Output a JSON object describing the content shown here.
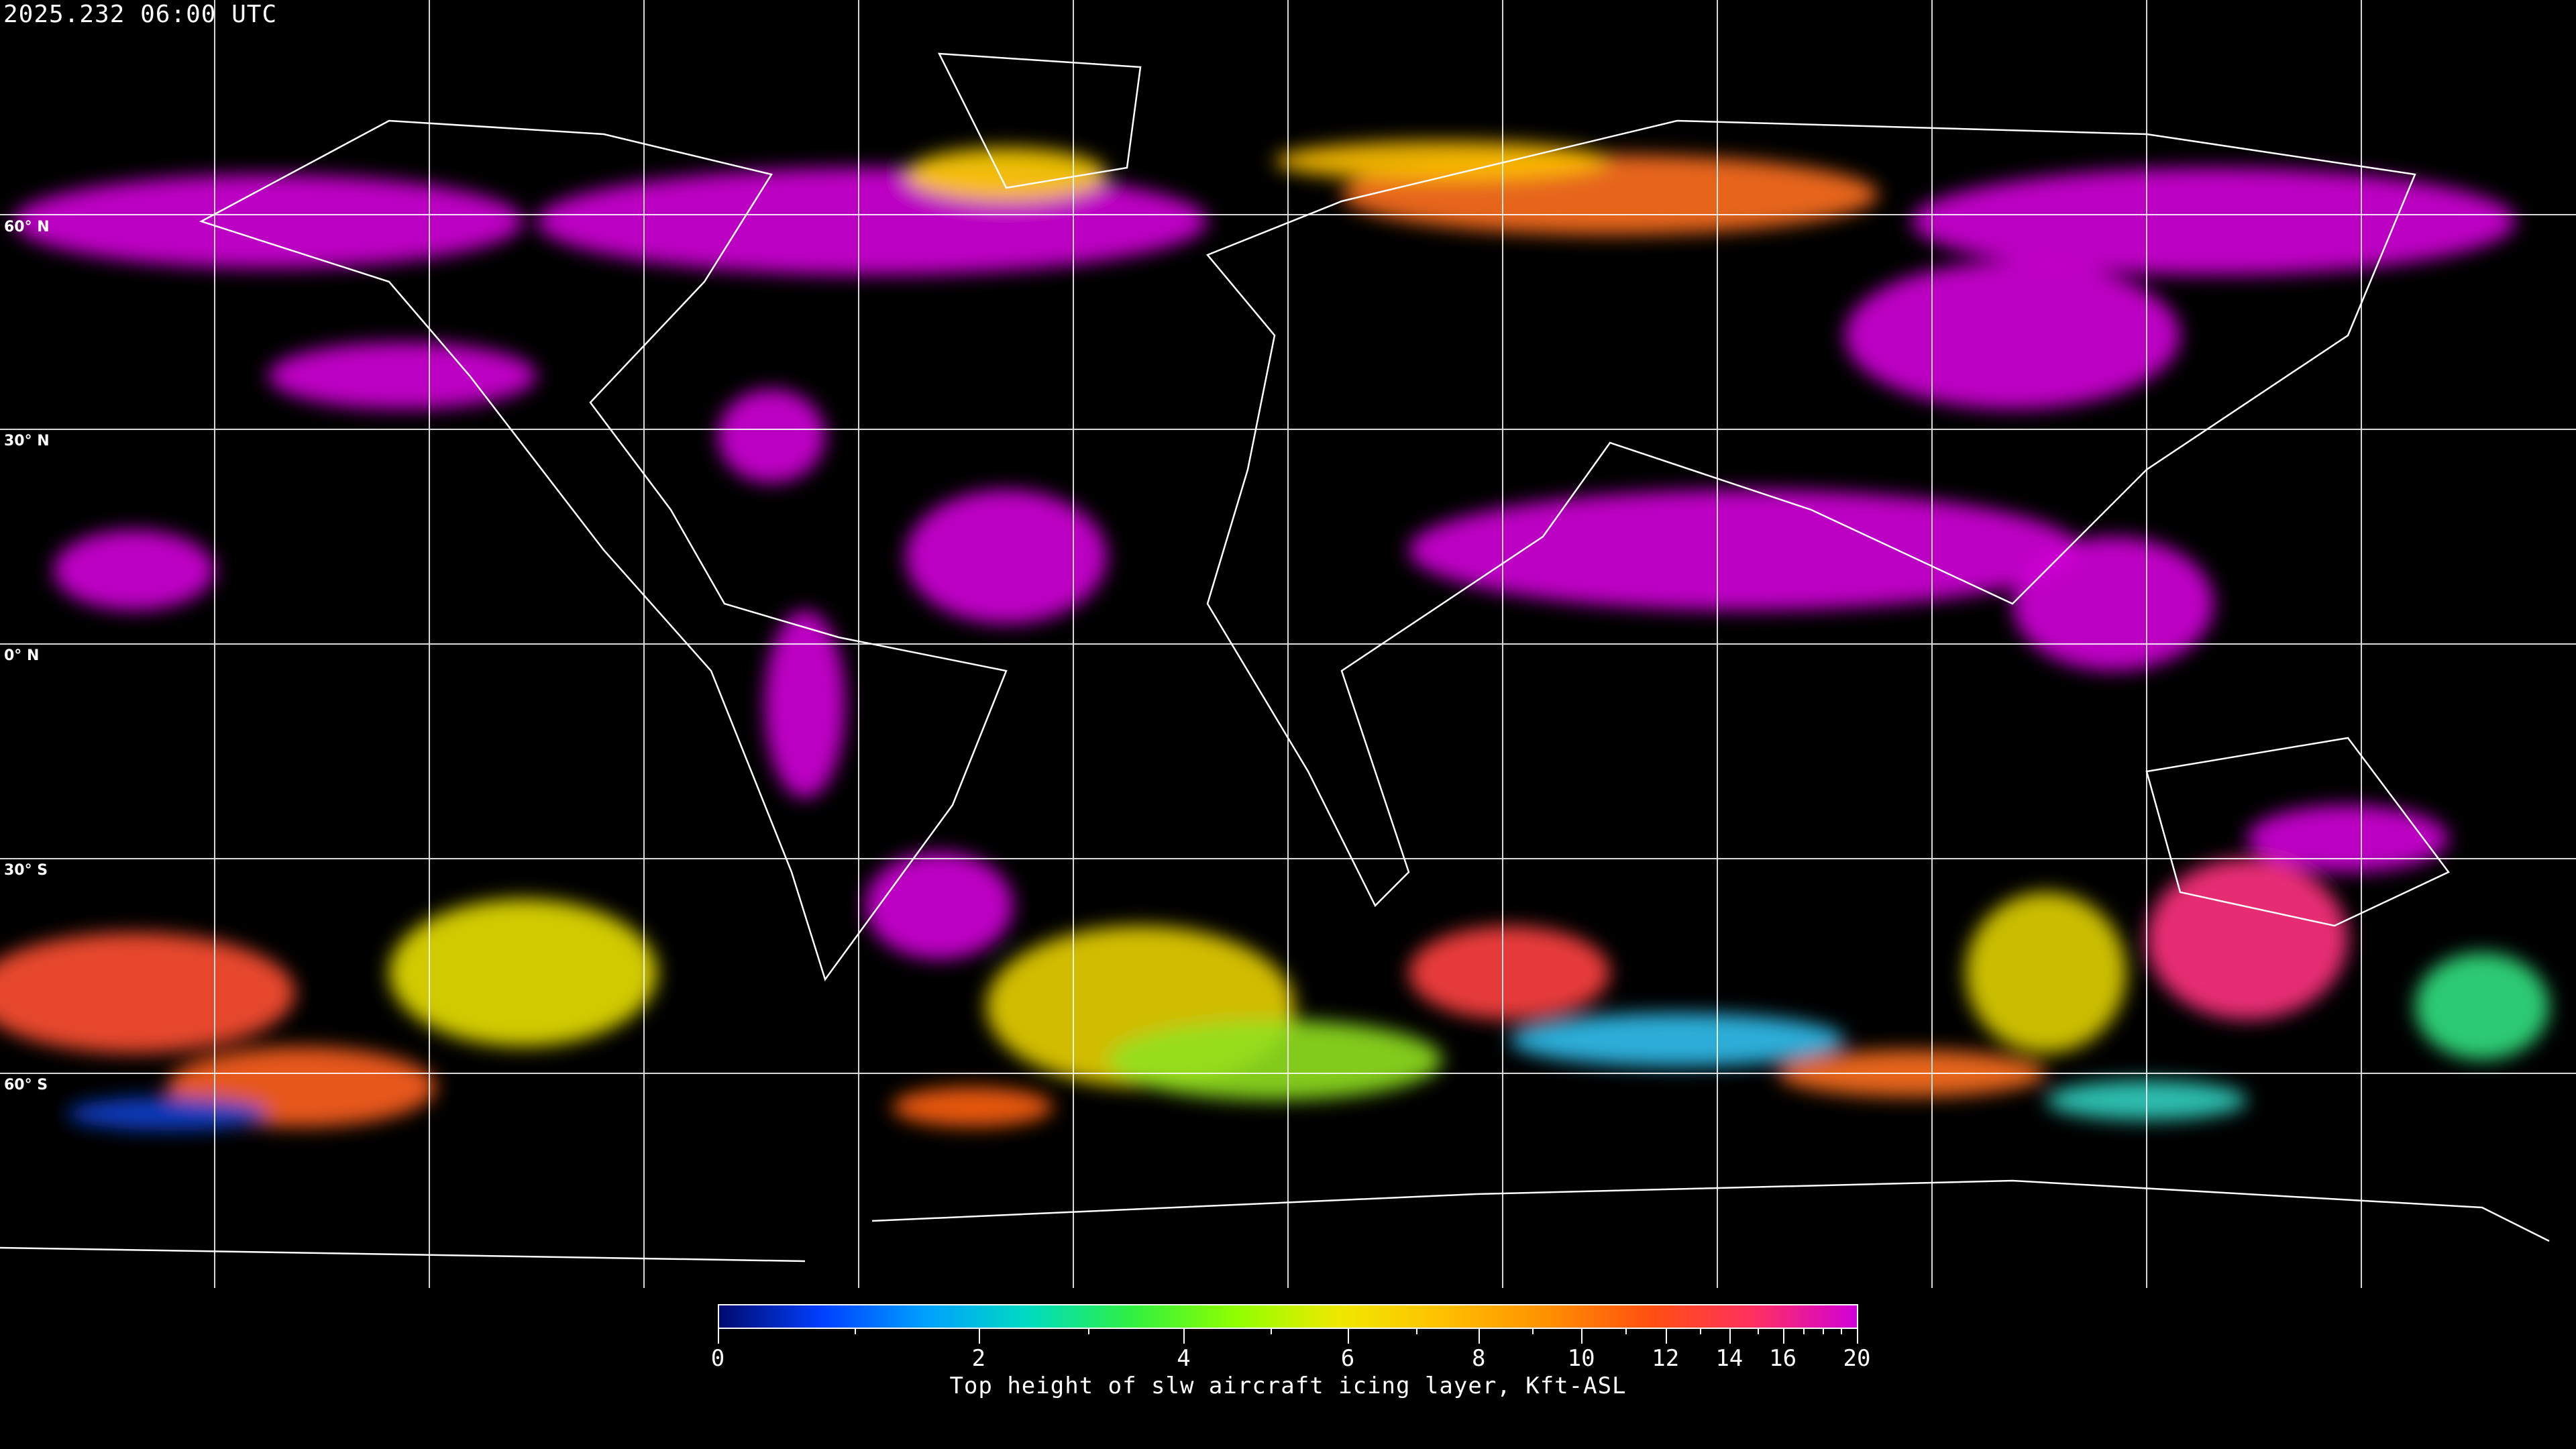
{
  "title": "2025.232 06:00 UTC",
  "map": {
    "projection": "equirectangular",
    "gridlines": true,
    "lat_labels": [
      "60° N",
      "30° N",
      "0° N",
      "30° S",
      "60° S"
    ],
    "colors": {
      "background": "#000000",
      "grid": "#ffffff",
      "coastline": "#ffffff"
    }
  },
  "colorbar": {
    "label": "Top height of slw aircraft icing layer, Kft-ASL",
    "tick_labels": [
      "0",
      "2",
      "4",
      "6",
      "8",
      "10",
      "12",
      "14",
      "16",
      "20"
    ],
    "range": [
      0,
      20
    ],
    "colors": [
      "#000a6e",
      "#0040ff",
      "#00a0ff",
      "#00dcc0",
      "#30f040",
      "#90ff00",
      "#f0e800",
      "#ffc000",
      "#ff9000",
      "#ff5010",
      "#ff3060",
      "#d000d8"
    ]
  }
}
